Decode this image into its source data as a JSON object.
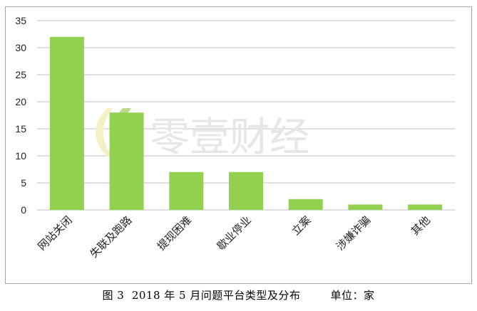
{
  "chart_data": {
    "type": "bar",
    "categories": [
      "网站关闭",
      "失联及跑路",
      "提现困难",
      "歇业停业",
      "立案",
      "涉嫌诈骗",
      "其他"
    ],
    "values": [
      32,
      18,
      7,
      7,
      2,
      1,
      1
    ],
    "ylim": [
      0,
      35
    ],
    "yticks": [
      0,
      5,
      10,
      15,
      20,
      25,
      30,
      35
    ],
    "grid": true,
    "bar_color": "#92d050",
    "grid_color": "#bfbfbf"
  },
  "caption": "图 3  2018 年 5 月问题平台类型及分布        单位：家",
  "watermark": {
    "text": "零壹财经",
    "logo_color_green": "#b8dc8c",
    "logo_color_yellow": "#f4f1c6"
  }
}
